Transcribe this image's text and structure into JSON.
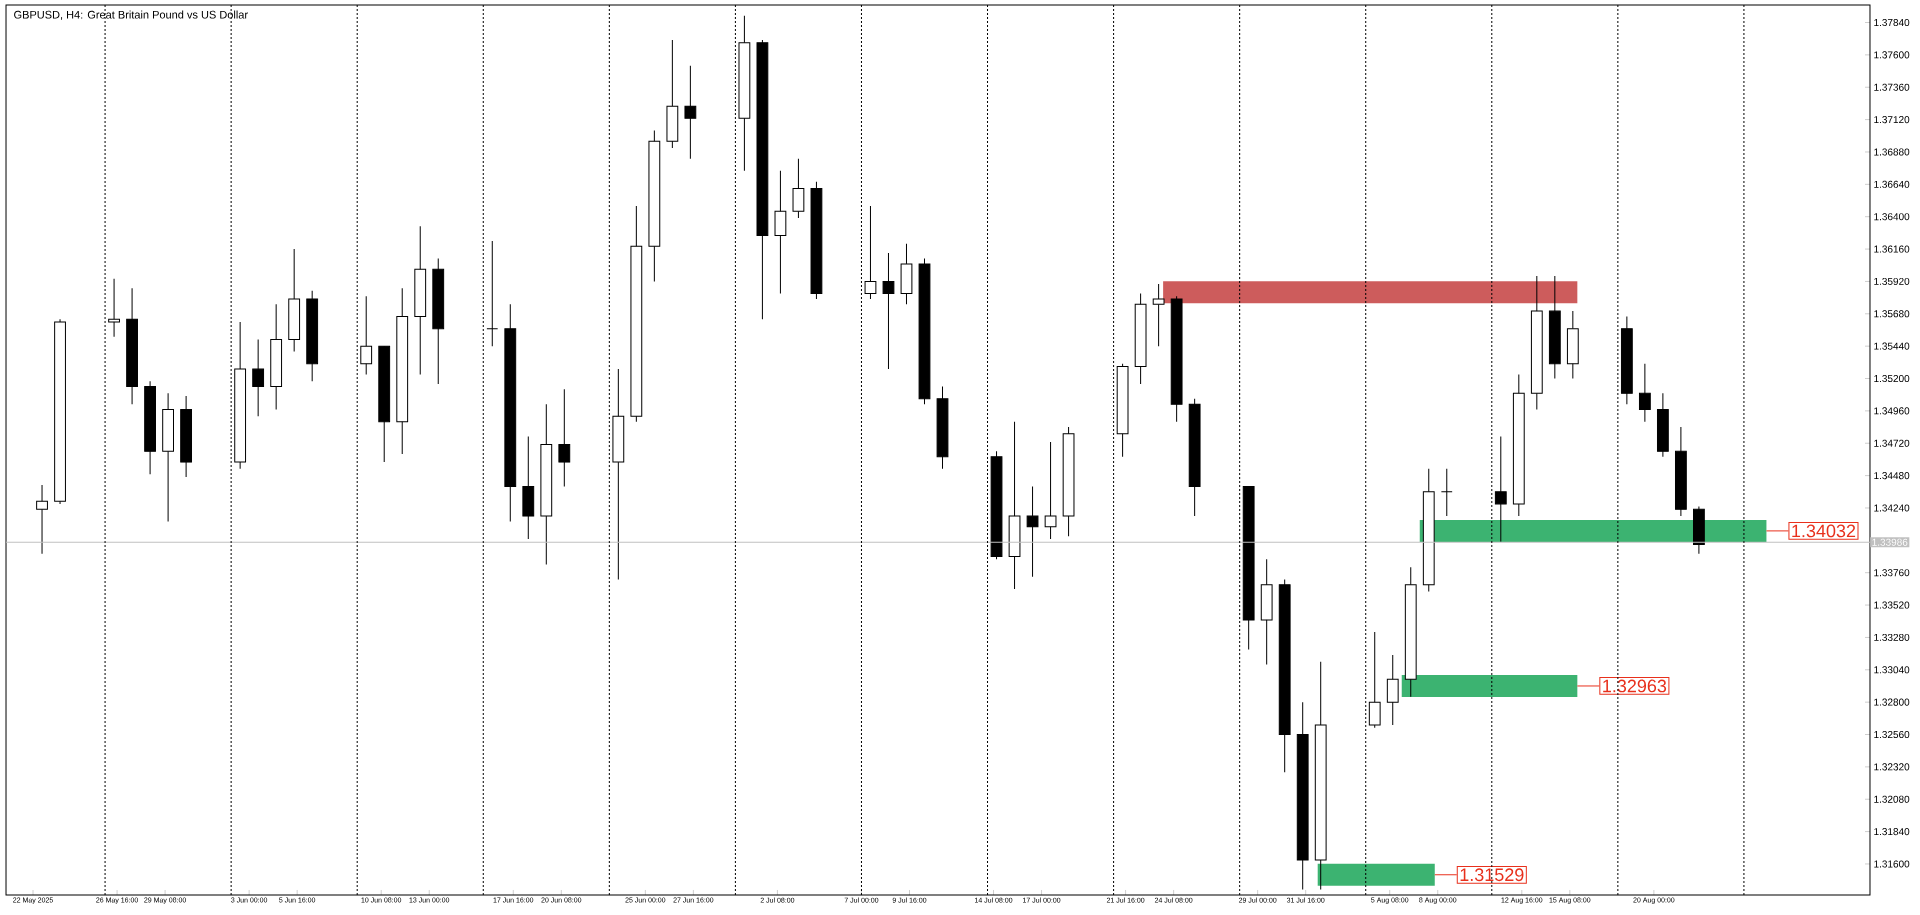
{
  "chart_data": {
    "type": "candlestick",
    "title": "GBPUSD, H4:  Great Britain Pound vs US Dollar",
    "x": [
      "2025-05-22T12:00",
      "2025-05-23T12:00",
      "2025-05-26T12:00",
      "2025-05-27T12:00",
      "2025-05-28T12:00",
      "2025-05-29T12:00",
      "2025-05-30T12:00",
      "2025-06-02T12:00",
      "2025-06-03T12:00",
      "2025-06-04T12:00",
      "2025-06-05T12:00",
      "2025-06-06T12:00",
      "2025-06-09T12:00",
      "2025-06-10T12:00",
      "2025-06-11T12:00",
      "2025-06-12T12:00",
      "2025-06-13T12:00",
      "2025-06-16T12:00",
      "2025-06-17T12:00",
      "2025-06-18T12:00",
      "2025-06-19T12:00",
      "2025-06-20T12:00",
      "2025-06-23T12:00",
      "2025-06-24T12:00",
      "2025-06-25T12:00",
      "2025-06-26T12:00",
      "2025-06-27T12:00",
      "2025-06-30T12:00",
      "2025-07-01T12:00",
      "2025-07-02T12:00",
      "2025-07-03T12:00",
      "2025-07-04T12:00",
      "2025-07-07T12:00",
      "2025-07-08T12:00",
      "2025-07-09T12:00",
      "2025-07-10T12:00",
      "2025-07-11T12:00",
      "2025-07-14T12:00",
      "2025-07-15T12:00",
      "2025-07-16T12:00",
      "2025-07-17T12:00",
      "2025-07-18T12:00",
      "2025-07-21T12:00",
      "2025-07-22T12:00",
      "2025-07-23T12:00",
      "2025-07-24T12:00",
      "2025-07-25T12:00",
      "2025-07-28T12:00",
      "2025-07-29T12:00",
      "2025-07-30T12:00",
      "2025-07-31T12:00",
      "2025-08-01T12:00",
      "2025-08-04T12:00",
      "2025-08-05T12:00",
      "2025-08-06T12:00",
      "2025-08-07T12:00",
      "2025-08-08T12:00",
      "2025-08-11T12:00",
      "2025-08-12T12:00",
      "2025-08-13T12:00",
      "2025-08-14T12:00",
      "2025-08-15T12:00",
      "2025-08-18T12:00",
      "2025-08-19T12:00",
      "2025-08-20T12:00",
      "2025-08-21T12:00",
      "2025-08-22T12:00"
    ],
    "ohlc": [
      [
        1.3423,
        1.3441,
        1.339,
        1.3429
      ],
      [
        1.3429,
        1.3564,
        1.3427,
        1.3562
      ],
      [
        1.3562,
        1.3594,
        1.3551,
        1.3564
      ],
      [
        1.3564,
        1.3587,
        1.3501,
        1.3514
      ],
      [
        1.3514,
        1.3518,
        1.3449,
        1.3466
      ],
      [
        1.3466,
        1.3509,
        1.3414,
        1.3497
      ],
      [
        1.3497,
        1.3507,
        1.3447,
        1.3458
      ],
      [
        1.3458,
        1.3562,
        1.3453,
        1.3527
      ],
      [
        1.3527,
        1.3549,
        1.3492,
        1.3514
      ],
      [
        1.3514,
        1.3575,
        1.3497,
        1.3549
      ],
      [
        1.3549,
        1.3616,
        1.354,
        1.3579
      ],
      [
        1.3579,
        1.3585,
        1.3518,
        1.3531
      ],
      [
        1.3531,
        1.3581,
        1.3523,
        1.3544
      ],
      [
        1.3544,
        1.3544,
        1.3458,
        1.3488
      ],
      [
        1.3488,
        1.3587,
        1.3464,
        1.3566
      ],
      [
        1.3566,
        1.3633,
        1.3523,
        1.3601
      ],
      [
        1.3601,
        1.3609,
        1.3516,
        1.3557
      ],
      [
        1.3557,
        1.3622,
        1.3544,
        1.3557
      ],
      [
        1.3557,
        1.3575,
        1.3414,
        1.344
      ],
      [
        1.344,
        1.3477,
        1.3401,
        1.3418
      ],
      [
        1.3418,
        1.3501,
        1.3382,
        1.3471
      ],
      [
        1.3471,
        1.3512,
        1.344,
        1.3458
      ],
      [
        1.3458,
        1.3527,
        1.3371,
        1.3492
      ],
      [
        1.3492,
        1.3648,
        1.3488,
        1.3618
      ],
      [
        1.3618,
        1.3704,
        1.3592,
        1.3696
      ],
      [
        1.3696,
        1.3771,
        1.3691,
        1.3722
      ],
      [
        1.3722,
        1.3752,
        1.3683,
        1.3713
      ],
      [
        1.3713,
        1.3789,
        1.3674,
        1.3769
      ],
      [
        1.3769,
        1.3771,
        1.3564,
        1.3626
      ],
      [
        1.3626,
        1.3674,
        1.3583,
        1.3644
      ],
      [
        1.3644,
        1.3683,
        1.3639,
        1.3661
      ],
      [
        1.3661,
        1.3666,
        1.3579,
        1.3583
      ],
      [
        1.3583,
        1.3648,
        1.3579,
        1.3592
      ],
      [
        1.3592,
        1.3613,
        1.3527,
        1.3583
      ],
      [
        1.3583,
        1.362,
        1.3575,
        1.3605
      ],
      [
        1.3605,
        1.3609,
        1.3501,
        1.3505
      ],
      [
        1.3505,
        1.3514,
        1.3453,
        1.3462
      ],
      [
        1.3462,
        1.3466,
        1.3386,
        1.3388
      ],
      [
        1.3388,
        1.3488,
        1.3364,
        1.3418
      ],
      [
        1.3418,
        1.344,
        1.3373,
        1.341
      ],
      [
        1.341,
        1.3473,
        1.3401,
        1.3418
      ],
      [
        1.3418,
        1.3484,
        1.3403,
        1.3479
      ],
      [
        1.3479,
        1.3531,
        1.3462,
        1.3529
      ],
      [
        1.3529,
        1.3583,
        1.3516,
        1.3575
      ],
      [
        1.3575,
        1.359,
        1.3544,
        1.3579
      ],
      [
        1.3579,
        1.3581,
        1.3488,
        1.3501
      ],
      [
        1.3501,
        1.3505,
        1.3418,
        1.344
      ],
      [
        1.344,
        1.344,
        1.3319,
        1.3341
      ],
      [
        1.3341,
        1.3386,
        1.3308,
        1.3367
      ],
      [
        1.3367,
        1.3371,
        1.3228,
        1.3256
      ],
      [
        1.3256,
        1.328,
        1.3141,
        1.3163
      ],
      [
        1.3163,
        1.331,
        1.3141,
        1.3263
      ],
      [
        1.3263,
        1.3332,
        1.3261,
        1.328
      ],
      [
        1.328,
        1.3315,
        1.3263,
        1.3297
      ],
      [
        1.3297,
        1.338,
        1.3284,
        1.3367
      ],
      [
        1.3367,
        1.3453,
        1.3362,
        1.3436
      ],
      [
        1.3436,
        1.3453,
        1.3418,
        1.3436
      ],
      [
        1.3436,
        1.3477,
        1.3399,
        1.3427
      ],
      [
        1.3427,
        1.3523,
        1.3418,
        1.3509
      ],
      [
        1.3509,
        1.3596,
        1.3497,
        1.357
      ],
      [
        1.357,
        1.3596,
        1.352,
        1.3531
      ],
      [
        1.3531,
        1.357,
        1.352,
        1.3557
      ],
      [
        1.3557,
        1.3566,
        1.3501,
        1.3509
      ],
      [
        1.3509,
        1.3531,
        1.3488,
        1.3497
      ],
      [
        1.3497,
        1.3509,
        1.3462,
        1.3466
      ],
      [
        1.3466,
        1.3484,
        1.3418,
        1.3423
      ],
      [
        1.3423,
        1.3425,
        1.339,
        1.3397
      ]
    ],
    "series": [
      {
        "type": "line",
        "x": [
          "2025-07-23T18:00",
          "2025-08-15T18:00"
        ],
        "values": [
          1.3584,
          1.3584
        ],
        "color": "#cd5c5c"
      },
      {
        "type": "line",
        "name": "1.34032",
        "x": [
          "2025-08-07T00:00",
          "2025-08-26T06:00"
        ],
        "values": [
          1.3407,
          1.3407
        ],
        "color": "#3cb371"
      },
      {
        "type": "line",
        "name": "1.32963",
        "x": [
          "2025-08-06T00:00",
          "2025-08-15T18:00"
        ],
        "values": [
          1.3292,
          1.3292
        ],
        "color": "#3cb371"
      },
      {
        "type": "line",
        "name": "1.31529",
        "x": [
          "2025-08-01T08:00",
          "2025-08-07T20:00"
        ],
        "values": [
          1.3152,
          1.3152
        ],
        "color": "#3cb371"
      }
    ],
    "xlim": [
      "2025-05-20T12:00",
      "2025-09-01T00:00"
    ],
    "ylim": [
      1.3137,
      1.3797
    ],
    "xticks": [
      {
        "value": "2025-05-22T00:00",
        "label": "22 May 2025"
      },
      {
        "value": "2025-05-26T16:00",
        "label": "26 May 16:00"
      },
      {
        "value": "2025-05-29T08:00",
        "label": "29 May 08:00"
      },
      {
        "value": "2025-06-03T00:00",
        "label": "3 Jun 00:00"
      },
      {
        "value": "2025-06-05T16:00",
        "label": "5 Jun 16:00"
      },
      {
        "value": "2025-06-10T08:00",
        "label": "10 Jun 08:00"
      },
      {
        "value": "2025-06-13T00:00",
        "label": "13 Jun 00:00"
      },
      {
        "value": "2025-06-17T16:00",
        "label": "17 Jun 16:00"
      },
      {
        "value": "2025-06-20T08:00",
        "label": "20 Jun 08:00"
      },
      {
        "value": "2025-06-25T00:00",
        "label": "25 Jun 00:00"
      },
      {
        "value": "2025-06-27T16:00",
        "label": "27 Jun 16:00"
      },
      {
        "value": "2025-07-02T08:00",
        "label": "2 Jul 08:00"
      },
      {
        "value": "2025-07-07T00:00",
        "label": "7 Jul 00:00"
      },
      {
        "value": "2025-07-09T16:00",
        "label": "9 Jul 16:00"
      },
      {
        "value": "2025-07-14T08:00",
        "label": "14 Jul 08:00"
      },
      {
        "value": "2025-07-17T00:00",
        "label": "17 Jul 00:00"
      },
      {
        "value": "2025-07-21T16:00",
        "label": "21 Jul 16:00"
      },
      {
        "value": "2025-07-24T08:00",
        "label": "24 Jul 08:00"
      },
      {
        "value": "2025-07-29T00:00",
        "label": "29 Jul 00:00"
      },
      {
        "value": "2025-07-31T16:00",
        "label": "31 Jul 16:00"
      },
      {
        "value": "2025-08-05T08:00",
        "label": "5 Aug 08:00"
      },
      {
        "value": "2025-08-08T00:00",
        "label": "8 Aug 00:00"
      },
      {
        "value": "2025-08-12T16:00",
        "label": "12 Aug 16:00"
      },
      {
        "value": "2025-08-15T08:00",
        "label": "15 Aug 08:00"
      },
      {
        "value": "2025-08-20T00:00",
        "label": "20 Aug 00:00"
      }
    ],
    "yticks": [
      {
        "value": 1.316,
        "label": "1.31600"
      },
      {
        "value": 1.3184,
        "label": "1.31840"
      },
      {
        "value": 1.3208,
        "label": "1.32080"
      },
      {
        "value": 1.3232,
        "label": "1.32320"
      },
      {
        "value": 1.3256,
        "label": "1.32560"
      },
      {
        "value": 1.328,
        "label": "1.32800"
      },
      {
        "value": 1.3304,
        "label": "1.33040"
      },
      {
        "value": 1.3328,
        "label": "1.33280"
      },
      {
        "value": 1.3352,
        "label": "1.33520"
      },
      {
        "value": 1.3376,
        "label": "1.33760"
      },
      {
        "value": 1.3424,
        "label": "1.34240"
      },
      {
        "value": 1.3448,
        "label": "1.34480"
      },
      {
        "value": 1.3472,
        "label": "1.34720"
      },
      {
        "value": 1.3496,
        "label": "1.34960"
      },
      {
        "value": 1.352,
        "label": "1.35200"
      },
      {
        "value": 1.3544,
        "label": "1.35440"
      },
      {
        "value": 1.3568,
        "label": "1.35680"
      },
      {
        "value": 1.3592,
        "label": "1.35920"
      },
      {
        "value": 1.3616,
        "label": "1.36160"
      },
      {
        "value": 1.364,
        "label": "1.36400"
      },
      {
        "value": 1.3664,
        "label": "1.36640"
      },
      {
        "value": 1.3688,
        "label": "1.36880"
      },
      {
        "value": 1.3712,
        "label": "1.37120"
      },
      {
        "value": 1.3736,
        "label": "1.37360"
      },
      {
        "value": 1.376,
        "label": "1.37600"
      },
      {
        "value": 1.3784,
        "label": "1.37840"
      }
    ],
    "ref_lines": [
      {
        "axis": "y",
        "value": 1.33986,
        "label": "1.33986",
        "color": "#c0c0c0",
        "line_style": "solid"
      },
      {
        "axis": "x",
        "value": "2025-05-26T00:00",
        "color": "#000000",
        "line_style": "dotted"
      },
      {
        "axis": "x",
        "value": "2025-06-02T00:00",
        "color": "#000000",
        "line_style": "dotted"
      },
      {
        "axis": "x",
        "value": "2025-06-09T00:00",
        "color": "#000000",
        "line_style": "dotted"
      },
      {
        "axis": "x",
        "value": "2025-06-16T00:00",
        "color": "#000000",
        "line_style": "dotted"
      },
      {
        "axis": "x",
        "value": "2025-06-23T00:00",
        "color": "#000000",
        "line_style": "dotted"
      },
      {
        "axis": "x",
        "value": "2025-06-30T00:00",
        "color": "#000000",
        "line_style": "dotted"
      },
      {
        "axis": "x",
        "value": "2025-07-07T00:00",
        "color": "#000000",
        "line_style": "dotted"
      },
      {
        "axis": "x",
        "value": "2025-07-14T00:00",
        "color": "#000000",
        "line_style": "dotted"
      },
      {
        "axis": "x",
        "value": "2025-07-21T00:00",
        "color": "#000000",
        "line_style": "dotted"
      },
      {
        "axis": "x",
        "value": "2025-07-28T00:00",
        "color": "#000000",
        "line_style": "dotted"
      },
      {
        "axis": "x",
        "value": "2025-08-04T00:00",
        "color": "#000000",
        "line_style": "dotted"
      },
      {
        "axis": "x",
        "value": "2025-08-11T00:00",
        "color": "#000000",
        "line_style": "dotted"
      },
      {
        "axis": "x",
        "value": "2025-08-18T00:00",
        "color": "#000000",
        "line_style": "dotted"
      },
      {
        "axis": "x",
        "value": "2025-08-25T00:00",
        "color": "#000000",
        "line_style": "dotted"
      }
    ]
  }
}
